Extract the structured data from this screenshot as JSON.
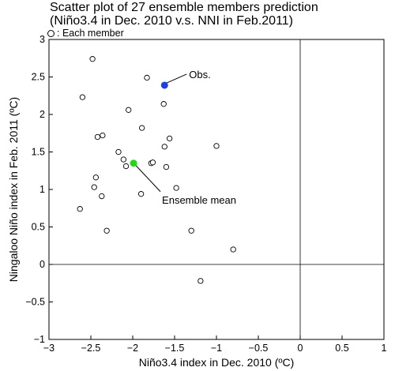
{
  "title_lines": [
    "Scatter plot of 27 ensemble members prediction",
    "(Niño3.4 in Dec. 2010 v.s. NNI in Feb.2011)"
  ],
  "legend_note": ": Each member",
  "chart_data": {
    "type": "scatter",
    "title": "Scatter plot of 27 ensemble members prediction (Niño3.4 in Dec. 2010 v.s. NNI in Feb.2011)",
    "xlabel": "Niño3.4 index in Dec. 2010 (ºC)",
    "ylabel": "Ningaloo Niño index in Feb. 2011 (ºC)",
    "xlim": [
      -3,
      1
    ],
    "ylim": [
      -1,
      3
    ],
    "x_ticks": [
      -3,
      -2.5,
      -2,
      -1.5,
      -1,
      -0.5,
      0,
      0.5,
      1
    ],
    "x_tick_labels": [
      "−3",
      "−2.5",
      "−2",
      "−1.5",
      "−1",
      "−0.5",
      "0",
      "0.5",
      "1"
    ],
    "y_ticks": [
      -1,
      -0.5,
      0,
      0.5,
      1,
      1.5,
      2,
      2.5,
      3
    ],
    "y_tick_labels": [
      "−1",
      "−0.5",
      "0",
      "0.5",
      "1",
      "1.5",
      "2",
      "2.5",
      "3"
    ],
    "zero_lines": true,
    "members": [
      {
        "x": -2.48,
        "y": 2.74
      },
      {
        "x": -2.6,
        "y": 2.23
      },
      {
        "x": -2.42,
        "y": 1.7
      },
      {
        "x": -2.36,
        "y": 1.72
      },
      {
        "x": -2.44,
        "y": 1.16
      },
      {
        "x": -2.46,
        "y": 1.03
      },
      {
        "x": -2.37,
        "y": 0.91
      },
      {
        "x": -2.63,
        "y": 0.74
      },
      {
        "x": -2.31,
        "y": 0.45
      },
      {
        "x": -2.17,
        "y": 1.5
      },
      {
        "x": -2.11,
        "y": 1.4
      },
      {
        "x": -2.08,
        "y": 1.31
      },
      {
        "x": -2.05,
        "y": 2.06
      },
      {
        "x": -1.89,
        "y": 1.82
      },
      {
        "x": -1.83,
        "y": 2.49
      },
      {
        "x": -1.78,
        "y": 1.35
      },
      {
        "x": -1.76,
        "y": 1.36
      },
      {
        "x": -1.9,
        "y": 0.94
      },
      {
        "x": -1.63,
        "y": 2.14
      },
      {
        "x": -1.62,
        "y": 1.57
      },
      {
        "x": -1.6,
        "y": 1.3
      },
      {
        "x": -1.56,
        "y": 1.68
      },
      {
        "x": -1.48,
        "y": 1.02
      },
      {
        "x": -1.0,
        "y": 1.58
      },
      {
        "x": -1.3,
        "y": 0.45
      },
      {
        "x": -0.8,
        "y": 0.2
      },
      {
        "x": -1.19,
        "y": -0.22
      }
    ],
    "observation": {
      "label": "Obs.",
      "x": -1.62,
      "y": 2.39,
      "color": "#1f3fe0"
    },
    "ensemble_mean": {
      "label": "Ensemble mean",
      "x": -1.99,
      "y": 1.35,
      "color": "#22d61a"
    }
  }
}
